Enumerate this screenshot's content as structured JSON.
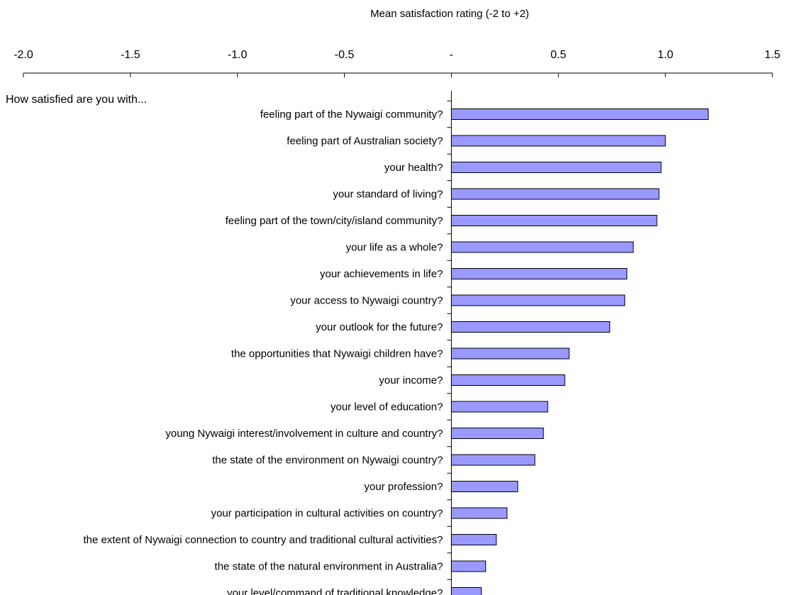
{
  "chart_data": {
    "type": "bar",
    "orientation": "horizontal",
    "title": "",
    "xlabel": "Mean satisfaction rating (-2 to +2)",
    "ylabel": "",
    "question_label": "How satisfied are you with...",
    "xlim": [
      -2.0,
      1.5
    ],
    "x_ticks": [
      -2.0,
      -1.5,
      -1.0,
      -0.5,
      0,
      0.5,
      1.0,
      1.5
    ],
    "x_tick_labels": [
      "-2.0",
      "-1.5",
      "-1.0",
      "-0.5",
      "-",
      "0.5",
      "1.0",
      "1.5"
    ],
    "x_axis_position": "top",
    "grid": false,
    "legend": "none",
    "bar_color": "#9999FF",
    "bar_edge_color": "#000000",
    "categories": [
      "feeling part of the Nywaigi community?",
      "feeling part of Australian society?",
      "your health?",
      "your standard of living?",
      "feeling part of the town/city/island community?",
      "your life as a whole?",
      "your achievements in life?",
      "your access to Nywaigi country?",
      "your outlook for the future?",
      "the opportunities that Nywaigi children have?",
      "your income?",
      "your level of education?",
      "young Nywaigi interest/involvement in culture and country?",
      "the state of the environment on Nywaigi country?",
      "your profession?",
      "your participation in cultural activities on country?",
      "the extent of Nywaigi connection to country and traditional cultural activities?",
      "the state of the natural environment in Australia?",
      "your level/command of traditional knowledge?"
    ],
    "values": [
      1.2,
      1.0,
      0.98,
      0.97,
      0.96,
      0.85,
      0.82,
      0.81,
      0.74,
      0.55,
      0.53,
      0.45,
      0.43,
      0.39,
      0.31,
      0.26,
      0.21,
      0.16,
      0.14
    ]
  }
}
